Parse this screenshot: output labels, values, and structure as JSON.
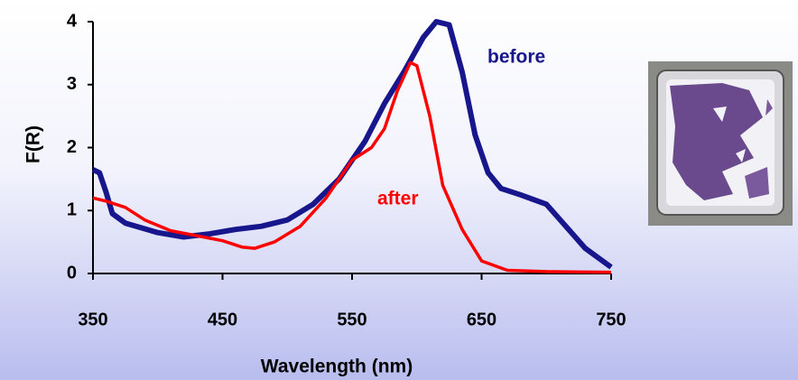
{
  "chart_data": {
    "type": "line",
    "xlabel": "Wavelength (nm)",
    "ylabel": "F(R)",
    "xlim": [
      350,
      750
    ],
    "xticks": [
      350,
      450,
      550,
      650,
      750
    ],
    "ylim": [
      0,
      4
    ],
    "yticks": [
      0,
      1,
      2,
      3,
      4
    ],
    "series": [
      {
        "name": "before",
        "color": "#18168c",
        "x": [
          350,
          355,
          360,
          365,
          375,
          400,
          420,
          440,
          460,
          480,
          500,
          520,
          540,
          560,
          575,
          590,
          605,
          615,
          625,
          635,
          645,
          655,
          665,
          680,
          700,
          715,
          730,
          750
        ],
        "values": [
          1.65,
          1.6,
          1.3,
          0.95,
          0.8,
          0.65,
          0.58,
          0.63,
          0.7,
          0.75,
          0.85,
          1.1,
          1.5,
          2.1,
          2.7,
          3.2,
          3.75,
          4.0,
          3.95,
          3.2,
          2.2,
          1.6,
          1.35,
          1.25,
          1.1,
          0.75,
          0.4,
          0.1
        ]
      },
      {
        "name": "after",
        "color": "#ff0000",
        "x": [
          350,
          360,
          375,
          390,
          410,
          430,
          450,
          465,
          475,
          490,
          510,
          530,
          550,
          565,
          575,
          585,
          595,
          600,
          610,
          620,
          635,
          650,
          670,
          700,
          750
        ],
        "values": [
          1.2,
          1.15,
          1.05,
          0.85,
          0.68,
          0.6,
          0.52,
          0.42,
          0.4,
          0.5,
          0.75,
          1.2,
          1.8,
          2.0,
          2.3,
          2.9,
          3.35,
          3.3,
          2.5,
          1.4,
          0.7,
          0.2,
          0.05,
          0.03,
          0.02
        ]
      }
    ]
  }
}
